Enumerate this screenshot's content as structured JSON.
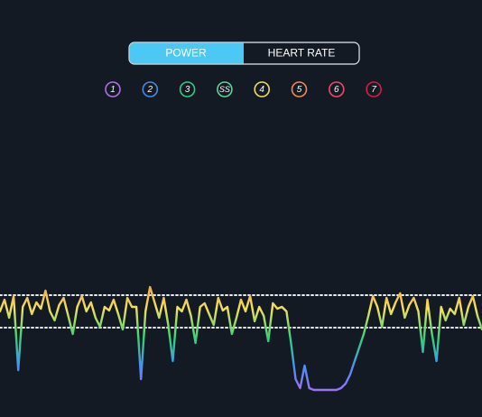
{
  "toggle": {
    "options": [
      "POWER",
      "HEART RATE"
    ],
    "selected": 0
  },
  "zones": [
    {
      "label": "1",
      "color": "#b56ee8"
    },
    {
      "label": "2",
      "color": "#3d8fe6"
    },
    {
      "label": "3",
      "color": "#2fcf7b"
    },
    {
      "label": "SS",
      "color": "#5fd39a"
    },
    {
      "label": "4",
      "color": "#efe05a"
    },
    {
      "label": "5",
      "color": "#f08a55"
    },
    {
      "label": "6",
      "color": "#ef4a6e"
    },
    {
      "label": "7",
      "color": "#d01e44"
    }
  ],
  "chart_data": {
    "type": "line",
    "values": [
      95,
      108,
      88,
      112,
      30,
      100,
      110,
      92,
      105,
      98,
      118,
      95,
      85,
      102,
      110,
      90,
      70,
      100,
      112,
      95,
      105,
      88,
      78,
      100,
      96,
      108,
      92,
      75,
      110,
      100,
      100,
      20,
      95,
      122,
      105,
      88,
      110,
      80,
      40,
      100,
      95,
      108,
      90,
      60,
      100,
      104,
      92,
      80,
      110,
      96,
      100,
      70,
      88,
      108,
      95,
      112,
      84,
      100,
      90,
      62,
      104,
      98,
      100,
      95,
      60,
      20,
      10,
      35,
      10,
      8,
      8,
      8,
      8,
      8,
      8,
      10,
      15,
      25,
      40,
      55,
      70,
      90,
      112,
      100,
      78,
      110,
      92,
      105,
      115,
      88,
      102,
      110,
      95,
      50,
      108,
      70,
      40,
      100,
      85,
      98,
      92,
      110,
      80,
      100,
      112,
      90,
      75
    ],
    "ylim": [
      0,
      130
    ],
    "reference_lines": [
      113,
      77
    ],
    "gradient": [
      "#b36cf0",
      "#4a8ff5",
      "#33d17a",
      "#f2e25a",
      "#f59a3c"
    ]
  }
}
